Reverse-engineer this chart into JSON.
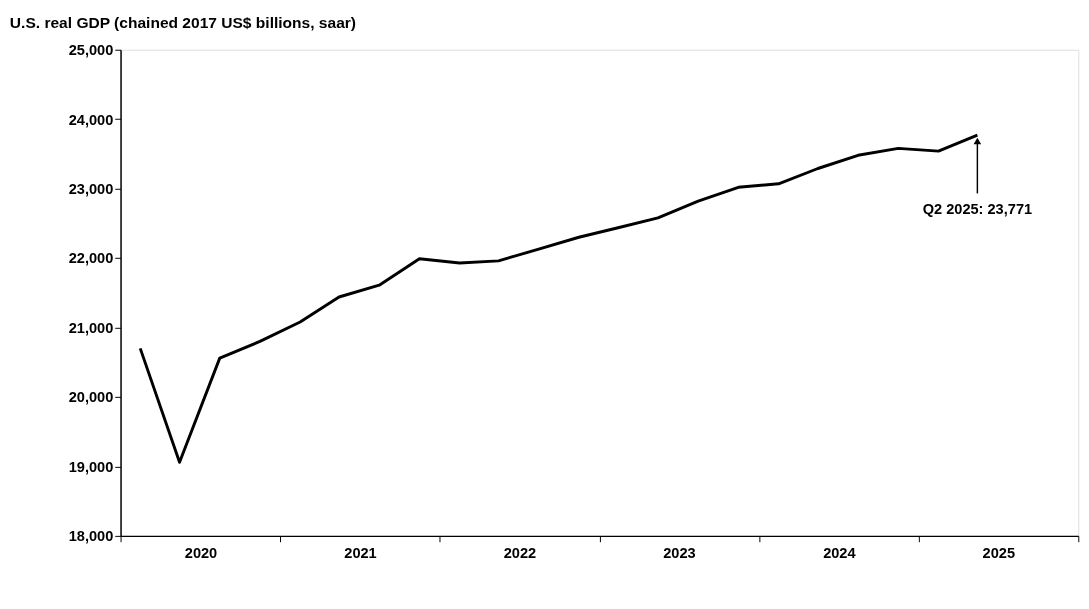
{
  "chart_data": {
    "type": "line",
    "title": "U.S. real GDP (chained 2017 US$ billions, saar)",
    "x": [
      "2020-02-15",
      "2020-05-15",
      "2020-08-15",
      "2020-11-15",
      "2021-02-15",
      "2021-05-15",
      "2021-08-15",
      "2021-11-15",
      "2022-02-15",
      "2022-05-15",
      "2022-08-15",
      "2022-11-15",
      "2023-02-15",
      "2023-05-15",
      "2023-08-15",
      "2023-11-15",
      "2024-02-15",
      "2024-05-15",
      "2024-08-15",
      "2024-11-15",
      "2025-02-15",
      "2025-05-15"
    ],
    "series": [
      {
        "color": "#000000",
        "values": [
          20700,
          19060,
          20560,
          20800,
          21080,
          21440,
          21610,
          21990,
          21930,
          21960,
          22130,
          22300,
          22440,
          22580,
          22820,
          23020,
          23070,
          23290,
          23480,
          23580,
          23540,
          23771
        ]
      }
    ],
    "xlim": [
      "2020-01-01",
      "2026-01-01"
    ],
    "xticks": [
      {
        "value": "2020-01-01",
        "label": null
      },
      {
        "value": "2020-07-02",
        "label": "2020"
      },
      {
        "value": "2021-01-01",
        "label": null
      },
      {
        "value": "2021-07-02",
        "label": "2021"
      },
      {
        "value": "2022-01-01",
        "label": null
      },
      {
        "value": "2022-07-02",
        "label": "2022"
      },
      {
        "value": "2023-01-01",
        "label": null
      },
      {
        "value": "2023-07-02",
        "label": "2023"
      },
      {
        "value": "2024-01-01",
        "label": null
      },
      {
        "value": "2024-07-02",
        "label": "2024"
      },
      {
        "value": "2025-01-01",
        "label": null
      },
      {
        "value": "2025-07-02",
        "label": "2025"
      },
      {
        "value": "2026-01-01",
        "label": null
      }
    ],
    "ylim": [
      18000,
      25000
    ],
    "yticks": [
      {
        "value": 18000,
        "label": "18,000"
      },
      {
        "value": 19000,
        "label": "19,000"
      },
      {
        "value": 20000,
        "label": "20,000"
      },
      {
        "value": 21000,
        "label": "21,000"
      },
      {
        "value": 22000,
        "label": "22,000"
      },
      {
        "value": 23000,
        "label": "23,000"
      },
      {
        "value": 24000,
        "label": "24,000"
      },
      {
        "value": 25000,
        "label": "25,000"
      }
    ],
    "annotations": [
      {
        "text": "Q2 2025: 23,771",
        "x": "2025-05-15",
        "y": 23771
      }
    ],
    "grid": false,
    "marker": "none",
    "line_style": "solid"
  }
}
